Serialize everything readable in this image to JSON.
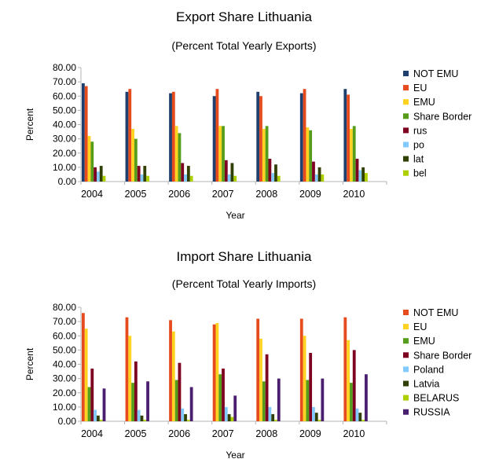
{
  "chart_data": [
    {
      "type": "bar",
      "title": "Export Share Lithuania",
      "subtitle": "(Percent Total Yearly Exports)",
      "xlabel": "Year",
      "ylabel": "Percent",
      "ylim": [
        0,
        80
      ],
      "yticks": [
        "0.00",
        "10.00",
        "20.00",
        "30.00",
        "40.00",
        "50.00",
        "60.00",
        "70.00",
        "80.00"
      ],
      "grid": false,
      "legend_position": "right",
      "categories": [
        "2004",
        "2005",
        "2006",
        "2007",
        "2008",
        "2009",
        "2010"
      ],
      "series": [
        {
          "name": "NOT EMU",
          "color": "#1f3f6e",
          "values": [
            69,
            63,
            62,
            60,
            63,
            62,
            65
          ]
        },
        {
          "name": "EU",
          "color": "#e64b1e",
          "values": [
            67,
            65,
            63,
            65,
            60,
            65,
            61
          ]
        },
        {
          "name": "EMU",
          "color": "#ffd320",
          "values": [
            32,
            37,
            39,
            39,
            37,
            38,
            37
          ]
        },
        {
          "name": "Share Border",
          "color": "#579d1c",
          "values": [
            28,
            30,
            34,
            39,
            39,
            36,
            39
          ]
        },
        {
          "name": "rus",
          "color": "#7e0021",
          "values": [
            10,
            11,
            13,
            15,
            16,
            14,
            16
          ]
        },
        {
          "name": "po",
          "color": "#83caff",
          "values": [
            7,
            5,
            5,
            5,
            6,
            5,
            8
          ]
        },
        {
          "name": "lat",
          "color": "#314004",
          "values": [
            11,
            11,
            11,
            13,
            12,
            10,
            10
          ]
        },
        {
          "name": "bel",
          "color": "#aecf00",
          "values": [
            4,
            4,
            4,
            4,
            4,
            5,
            6
          ]
        }
      ]
    },
    {
      "type": "bar",
      "title": "Import Share Lithuania",
      "subtitle": "(Percent Total Yearly Imports)",
      "xlabel": "Year",
      "ylabel": "Percent",
      "ylim": [
        0,
        80
      ],
      "yticks": [
        "0.00",
        "10.00",
        "20.00",
        "30.00",
        "40.00",
        "50.00",
        "60.00",
        "70.00",
        "80.00"
      ],
      "grid": false,
      "legend_position": "right",
      "categories": [
        "2004",
        "2005",
        "2006",
        "2007",
        "2008",
        "2009",
        "2010"
      ],
      "series": [
        {
          "name": "NOT EMU",
          "color": "#e64b1e",
          "values": [
            76,
            73,
            71,
            68,
            72,
            72,
            73
          ]
        },
        {
          "name": "EU",
          "color": "#ffd320",
          "values": [
            65,
            60,
            63,
            69,
            58,
            60,
            57
          ]
        },
        {
          "name": "EMU",
          "color": "#579d1c",
          "values": [
            24,
            27,
            29,
            33,
            28,
            29,
            27
          ]
        },
        {
          "name": "Share Border",
          "color": "#7e0021",
          "values": [
            37,
            42,
            41,
            37,
            47,
            48,
            50
          ]
        },
        {
          "name": "Poland",
          "color": "#83caff",
          "values": [
            8,
            8,
            9,
            10,
            10,
            10,
            9
          ]
        },
        {
          "name": "Latvia",
          "color": "#314004",
          "values": [
            4,
            4,
            5,
            5,
            5,
            6,
            6
          ]
        },
        {
          "name": "BELARUS",
          "color": "#aecf00",
          "values": [
            1,
            1,
            1,
            3,
            1,
            1,
            1
          ]
        },
        {
          "name": "RUSSIA",
          "color": "#4b1f6f",
          "values": [
            23,
            28,
            24,
            18,
            30,
            30,
            33
          ]
        }
      ]
    }
  ]
}
